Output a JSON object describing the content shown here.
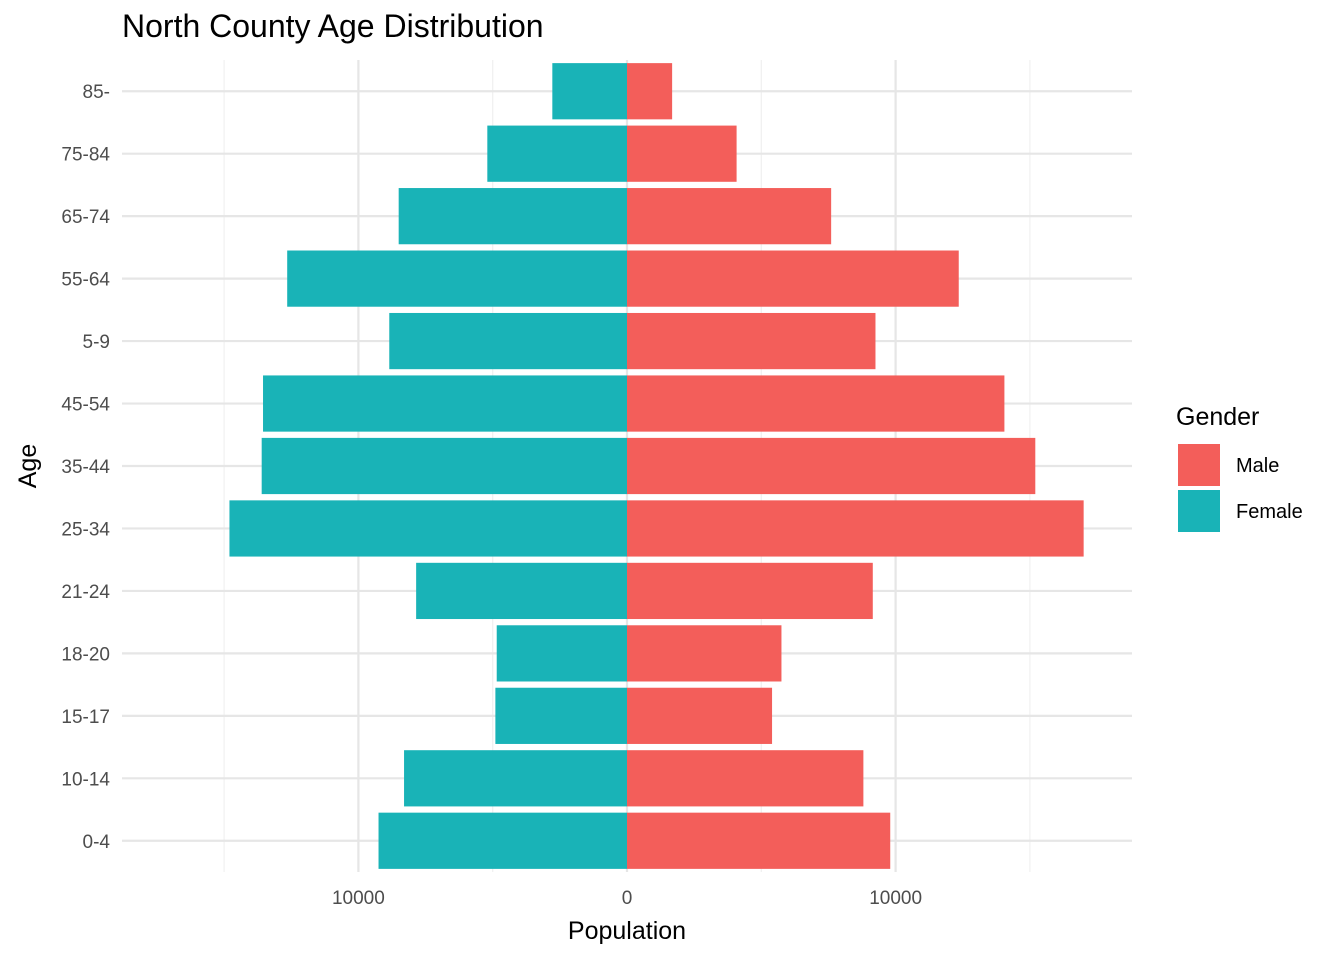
{
  "chart_data": {
    "type": "bar",
    "orientation": "horizontal",
    "title": "North County Age Distribution",
    "xlabel": "Population",
    "ylabel": "Age",
    "categories": [
      "0-4",
      "10-14",
      "15-17",
      "18-20",
      "21-24",
      "25-34",
      "35-44",
      "45-54",
      "5-9",
      "55-64",
      "65-74",
      "75-84",
      "85-"
    ],
    "series": [
      {
        "name": "Male",
        "color": "#F35E5A",
        "values": [
          9800,
          8800,
          5400,
          5750,
          9150,
          17000,
          15200,
          14050,
          9250,
          12350,
          7600,
          4080,
          1680
        ]
      },
      {
        "name": "Female",
        "color": "#19B3B7",
        "values": [
          9250,
          8300,
          4900,
          4850,
          7850,
          14800,
          13600,
          13550,
          8850,
          12650,
          8500,
          5200,
          2780
        ]
      }
    ],
    "female_plotted_negative": true,
    "xlim": [
      -18800,
      18800
    ],
    "x_ticks": [
      {
        "value": -10000,
        "label": "10000"
      },
      {
        "value": 0,
        "label": "0"
      },
      {
        "value": 10000,
        "label": "10000"
      }
    ],
    "grid": true,
    "legend": {
      "title": "Gender",
      "position": "right",
      "entries": [
        "Male",
        "Female"
      ]
    }
  }
}
